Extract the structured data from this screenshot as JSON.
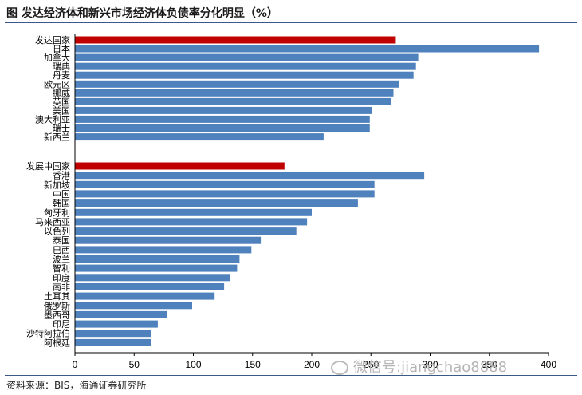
{
  "figure": {
    "title": "图  发达经济体和新兴市场经济体负债率分化明显（%）",
    "source": "资料来源：BIS，海通证券研究所",
    "watermark": "微信号:jiangchao8888"
  },
  "colors": {
    "highlight": "#c00000",
    "bar": "#4f81bd",
    "axis": "#000000",
    "rule": "#3a5a86"
  },
  "chart_data": {
    "type": "bar",
    "orientation": "horizontal",
    "categories": [
      "发达国家",
      "日本",
      "加拿大",
      "瑞典",
      "丹麦",
      "欧元区",
      "挪威",
      "英国",
      "美国",
      "澳大利亚",
      "瑞士",
      "新西兰",
      "发展中国家",
      "香港",
      "新加坡",
      "中国",
      "韩国",
      "匈牙利",
      "马来西亚",
      "以色列",
      "泰国",
      "巴西",
      "波兰",
      "智利",
      "印度",
      "南非",
      "土耳其",
      "俄罗斯",
      "墨西哥",
      "印尼",
      "沙特阿拉伯",
      "阿根廷"
    ],
    "values": [
      271,
      392,
      290,
      288,
      286,
      274,
      269,
      267,
      251,
      249,
      249,
      210,
      177,
      295,
      253,
      253,
      239,
      200,
      196,
      187,
      157,
      149,
      139,
      137,
      131,
      126,
      118,
      99,
      78,
      70,
      64,
      64
    ],
    "highlighted": [
      "发达国家",
      "发展中国家"
    ],
    "xlim": [
      0,
      400
    ],
    "xticks": [
      0,
      50,
      100,
      150,
      200,
      250,
      300,
      350,
      400
    ],
    "grid": false,
    "legend": "none"
  }
}
